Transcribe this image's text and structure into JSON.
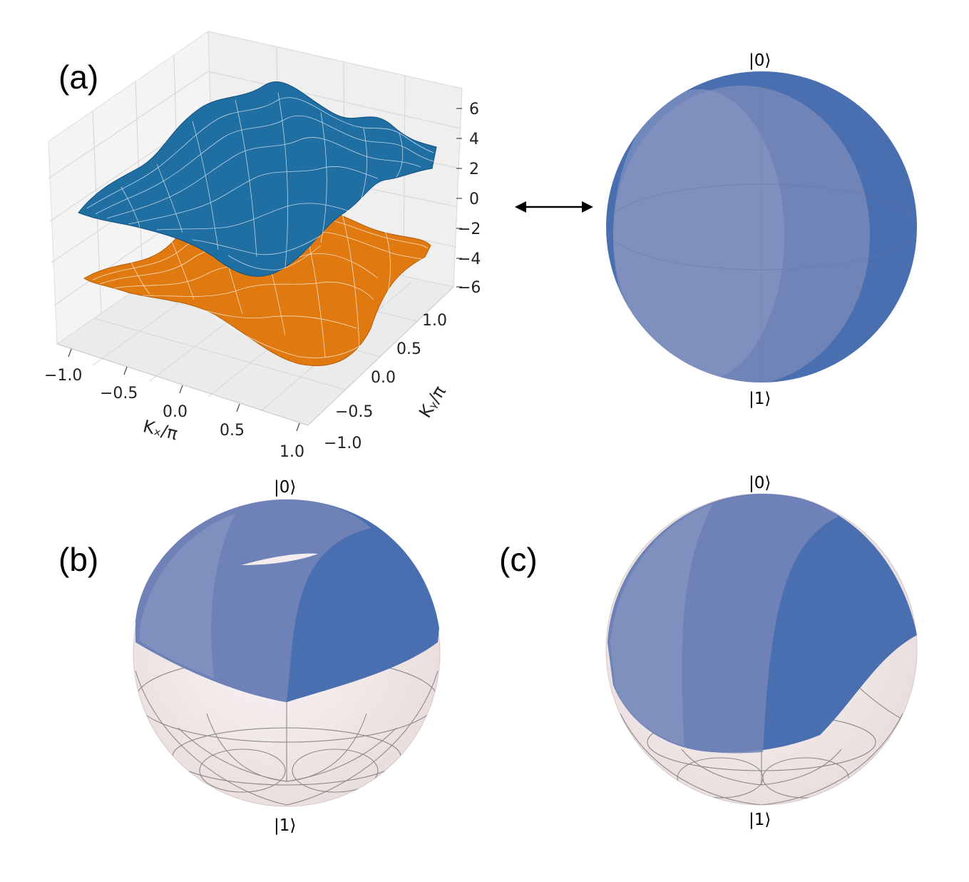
{
  "panels": {
    "a": {
      "label": "(a)",
      "zticks": [
        "6",
        "4",
        "2",
        "0",
        "−2",
        "−4",
        "−6"
      ],
      "xticks": [
        "−1.0",
        "−0.5",
        "0.0",
        "0.5",
        "1.0"
      ],
      "yticks": [
        "1.0",
        "0.5",
        "0.0",
        "−0.5",
        "−1.0"
      ],
      "xlabel": "Kₓ/π",
      "ylabel": "Kᵧ/π",
      "upper_band_color": "#1f6fa3",
      "lower_band_color": "#e07a10",
      "bloch_top": "|0⟩",
      "bloch_bottom": "|1⟩"
    },
    "b": {
      "label": "(b)",
      "bloch_top": "|0⟩",
      "bloch_bottom": "|1⟩"
    },
    "c": {
      "label": "(c)",
      "bloch_top": "|0⟩",
      "bloch_bottom": "|1⟩"
    }
  },
  "colors": {
    "bloch_fill": "#4a6fb0",
    "sphere_shell": "#f1e7e7",
    "grid": "#d4d4d4"
  }
}
